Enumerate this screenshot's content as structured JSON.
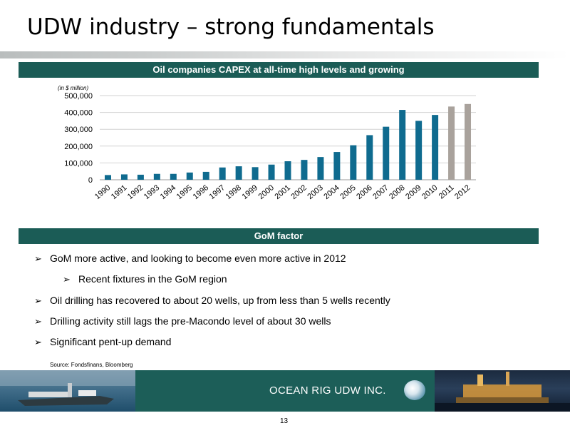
{
  "slide": {
    "title": "UDW industry – strong fundamentals",
    "chart_header": "Oil companies CAPEX at all-time high levels and growing",
    "gom_header": "GoM factor",
    "bullets": [
      {
        "text": "GoM more active, and looking to become even more active in 2012",
        "level": 0
      },
      {
        "text": "Recent fixtures in the GoM region",
        "level": 1
      },
      {
        "text": "Oil drilling has recovered to about 20 wells, up from less than 5 wells recently",
        "level": 0
      },
      {
        "text": "Drilling activity still lags the pre-Macondo level of about 30 wells",
        "level": 0
      },
      {
        "text": "Significant pent-up demand",
        "level": 0
      }
    ],
    "bullet_glyph": "➢",
    "source": "Source: Fondsfinans, Bloomberg",
    "company": "OCEAN RIG UDW INC.",
    "page_number": "13"
  },
  "colors": {
    "header_bg": "#1b5c56",
    "bar_actual": "#0f6b8f",
    "bar_forecast": "#a9a29c",
    "footer_bg": "#1c5e58"
  },
  "chart_data": {
    "type": "bar",
    "unit_note": "(in $ million)",
    "categories": [
      "1990",
      "1991",
      "1992",
      "1993",
      "1994",
      "1995",
      "1996",
      "1997",
      "1998",
      "1999",
      "2000",
      "2001",
      "2002",
      "2003",
      "2004",
      "2005",
      "2006",
      "2007",
      "2008",
      "2009",
      "2010",
      "2011",
      "2012"
    ],
    "values": [
      28000,
      32000,
      30000,
      35000,
      35000,
      43000,
      47000,
      73000,
      80000,
      75000,
      90000,
      110000,
      118000,
      135000,
      165000,
      205000,
      265000,
      315000,
      415000,
      350000,
      385000,
      435000,
      450000
    ],
    "forecast_from_index": 21,
    "ylim": [
      0,
      500000
    ],
    "yticks": [
      0,
      100000,
      200000,
      300000,
      400000,
      500000
    ],
    "ytick_labels": [
      "0",
      "100,000",
      "200,000",
      "300,000",
      "400,000",
      "500,000"
    ],
    "grid": true,
    "title": "",
    "xlabel": "",
    "ylabel": ""
  }
}
